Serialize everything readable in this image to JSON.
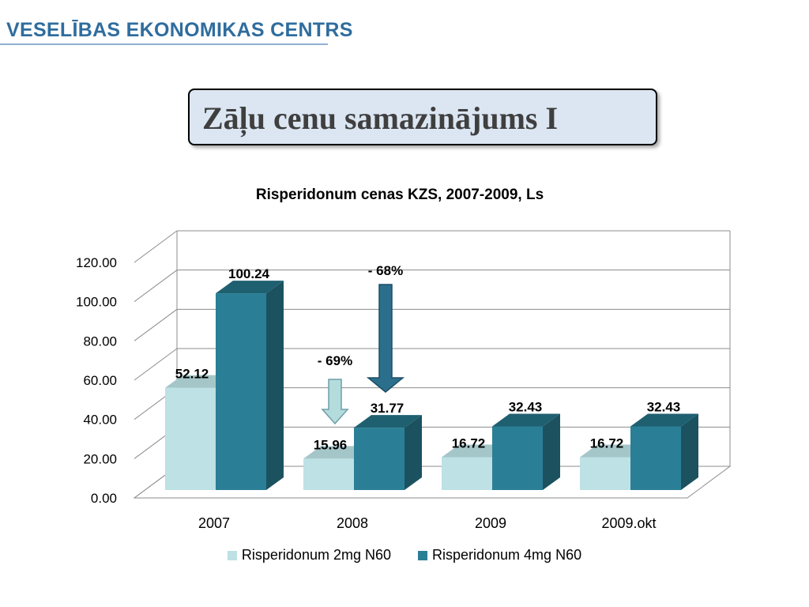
{
  "header": {
    "org_name": "VESELĪBAS EKONOMIKAS CENTRS"
  },
  "slide": {
    "title": "Zāļu cenu samazinājums I"
  },
  "chart_data": {
    "type": "bar",
    "title": "Risperidonum cenas KZS, 2007-2009, Ls",
    "categories": [
      "2007",
      "2008",
      "2009",
      "2009.okt"
    ],
    "series": [
      {
        "name": "Risperidonum 2mg N60",
        "values": [
          52.12,
          15.96,
          16.72,
          16.72
        ],
        "labels": [
          "52.12",
          "15.96",
          "16.72",
          "16.72"
        ]
      },
      {
        "name": "Risperidonum 4mg N60",
        "values": [
          100.24,
          31.77,
          32.43,
          32.43
        ],
        "labels": [
          "100.24",
          "31.77",
          "32.43",
          "32.43"
        ]
      }
    ],
    "ylim": [
      0,
      120
    ],
    "yticks": [
      "0.00",
      "20.00",
      "40.00",
      "60.00",
      "80.00",
      "100.00",
      "120.00"
    ],
    "grid": true,
    "legend_position": "bottom",
    "annotations": [
      {
        "text": "- 69%",
        "series": "Risperidonum 2mg N60",
        "category": "2008"
      },
      {
        "text": "- 68%",
        "series": "Risperidonum 4mg N60",
        "category": "2008"
      }
    ],
    "colors": {
      "series1": "#bde1e4",
      "series1_top": "#a5c6c9",
      "series1_side": "#97b5b7",
      "series2": "#2a7f96",
      "series2_top": "#1f6070",
      "series2_side": "#1c5260",
      "grid": "#8c8c8c",
      "arrow_light": "#b5dcdd",
      "arrow_dark": "#2c6f8c"
    }
  }
}
